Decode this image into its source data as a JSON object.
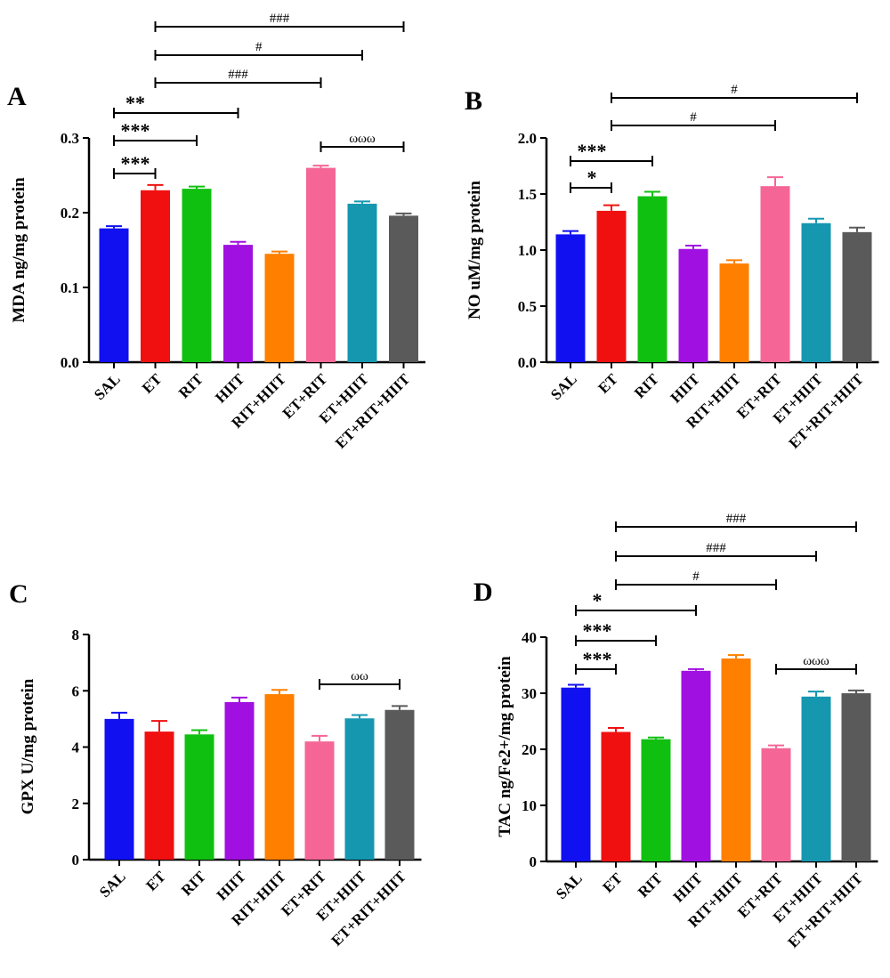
{
  "colors": [
    "#1010f0",
    "#f01010",
    "#10c010",
    "#a010e0",
    "#ff7f00",
    "#f56696",
    "#1597b0",
    "#5a5a5a"
  ],
  "chart_data": [
    {
      "panel": "A",
      "type": "bar",
      "ylabel": "MDA ng/mg protein",
      "categories": [
        "SAL",
        "ET",
        "RIT",
        "HIIT",
        "RIT+HIIT",
        "ET+RIT",
        "ET+HIIT",
        "ET+RIT+HIIT"
      ],
      "values": [
        0.179,
        0.23,
        0.232,
        0.157,
        0.145,
        0.26,
        0.212,
        0.196
      ],
      "errors": [
        0.003,
        0.007,
        0.003,
        0.004,
        0.003,
        0.003,
        0.003,
        0.003
      ],
      "ylim": [
        0,
        0.3
      ],
      "yticks": [
        0.0,
        0.1,
        0.2,
        0.3
      ],
      "ytick_labels": [
        "0.0",
        "0.1",
        "0.2",
        "0.3"
      ],
      "annotations": [
        {
          "from": 0,
          "to": 1,
          "label": "***"
        },
        {
          "from": 0,
          "to": 2,
          "label": "***"
        },
        {
          "from": 0,
          "to": 3,
          "label": "**"
        },
        {
          "from": 1,
          "to": 5,
          "label": "###"
        },
        {
          "from": 1,
          "to": 6,
          "label": "#"
        },
        {
          "from": 1,
          "to": 7,
          "label": "###"
        },
        {
          "from": 5,
          "to": 7,
          "label": "ωωω"
        }
      ]
    },
    {
      "panel": "B",
      "type": "bar",
      "ylabel": "NO uM/mg protein",
      "categories": [
        "SAL",
        "ET",
        "RIT",
        "HIIT",
        "RIT+HIIT",
        "ET+RIT",
        "ET+HIIT",
        "ET+RIT+HIIT"
      ],
      "values": [
        1.14,
        1.35,
        1.48,
        1.01,
        0.88,
        1.57,
        1.24,
        1.16
      ],
      "errors": [
        0.03,
        0.05,
        0.04,
        0.03,
        0.03,
        0.08,
        0.04,
        0.04
      ],
      "ylim": [
        0,
        2.0
      ],
      "yticks": [
        0.0,
        0.5,
        1.0,
        1.5,
        2.0
      ],
      "ytick_labels": [
        "0.0",
        "0.5",
        "1.0",
        "1.5",
        "2.0"
      ],
      "annotations": [
        {
          "from": 0,
          "to": 1,
          "label": "*"
        },
        {
          "from": 0,
          "to": 2,
          "label": "***"
        },
        {
          "from": 1,
          "to": 5,
          "label": "#"
        },
        {
          "from": 1,
          "to": 7,
          "label": "#"
        }
      ]
    },
    {
      "panel": "C",
      "type": "bar",
      "ylabel": "GPX U/mg protein",
      "categories": [
        "SAL",
        "ET",
        "RIT",
        "HIIT",
        "RIT+HIIT",
        "ET+RIT",
        "ET+HIIT",
        "ET+RIT+HIIT"
      ],
      "values": [
        5.0,
        4.55,
        4.45,
        5.6,
        5.88,
        4.2,
        5.02,
        5.32
      ],
      "errors": [
        0.22,
        0.38,
        0.15,
        0.16,
        0.15,
        0.2,
        0.12,
        0.14
      ],
      "ylim": [
        0,
        8
      ],
      "yticks": [
        0,
        2,
        4,
        6,
        8
      ],
      "ytick_labels": [
        "0",
        "2",
        "4",
        "6",
        "8"
      ],
      "annotations": [
        {
          "from": 5,
          "to": 7,
          "label": "ωω"
        }
      ]
    },
    {
      "panel": "D",
      "type": "bar",
      "ylabel": "TAC ng/Fe2+/mg protein",
      "categories": [
        "SAL",
        "ET",
        "RIT",
        "HIIT",
        "RIT+HIIT",
        "ET+RIT",
        "ET+HIIT",
        "ET+RIT+HIIT"
      ],
      "values": [
        31.0,
        23.1,
        21.8,
        34.0,
        36.2,
        20.2,
        29.4,
        30.0
      ],
      "errors": [
        0.5,
        0.7,
        0.3,
        0.3,
        0.6,
        0.5,
        0.9,
        0.5
      ],
      "ylim": [
        0,
        40
      ],
      "yticks": [
        0,
        10,
        20,
        30,
        40
      ],
      "ytick_labels": [
        "0",
        "10",
        "20",
        "30",
        "40"
      ],
      "annotations": [
        {
          "from": 0,
          "to": 1,
          "label": "***"
        },
        {
          "from": 0,
          "to": 2,
          "label": "***"
        },
        {
          "from": 0,
          "to": 3,
          "label": "*"
        },
        {
          "from": 1,
          "to": 5,
          "label": "#"
        },
        {
          "from": 1,
          "to": 6,
          "label": "###"
        },
        {
          "from": 1,
          "to": 7,
          "label": "###"
        },
        {
          "from": 5,
          "to": 7,
          "label": "ωωω"
        }
      ]
    }
  ]
}
